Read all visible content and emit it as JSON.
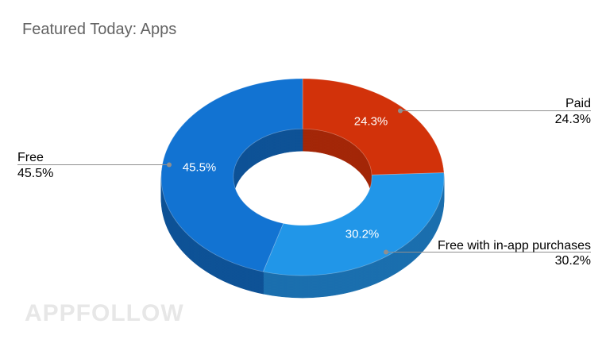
{
  "title": "Featured Today: Apps",
  "watermark": "APPFOLLOW",
  "chart_data": {
    "type": "pie",
    "subtype": "3d-donut",
    "title": "Featured Today: Apps",
    "donut": true,
    "three_d": true,
    "labels_position": "callout",
    "start_angle_deg": 0,
    "direction": "clockwise",
    "slices": [
      {
        "label": "Paid",
        "value": 24.3,
        "pct_label": "24.3%",
        "color": "#d2320a",
        "side_color": "#a32708"
      },
      {
        "label": "Free with in-app purchases",
        "value": 30.2,
        "pct_label": "30.2%",
        "color": "#2196e8",
        "side_color": "#1b6fae"
      },
      {
        "label": "Free",
        "value": 45.5,
        "pct_label": "45.5%",
        "color": "#1273d2",
        "side_color": "#0e5296"
      }
    ]
  },
  "colors": {
    "background": "#ffffff",
    "title_text": "#636363",
    "callout_name_text": "#4a4a4a",
    "callout_pct_text": "#9e9e9e",
    "leader_line": "#8f8f8f",
    "slice_label_text": "#ffffff",
    "watermark_text": "#e7e7e7"
  }
}
